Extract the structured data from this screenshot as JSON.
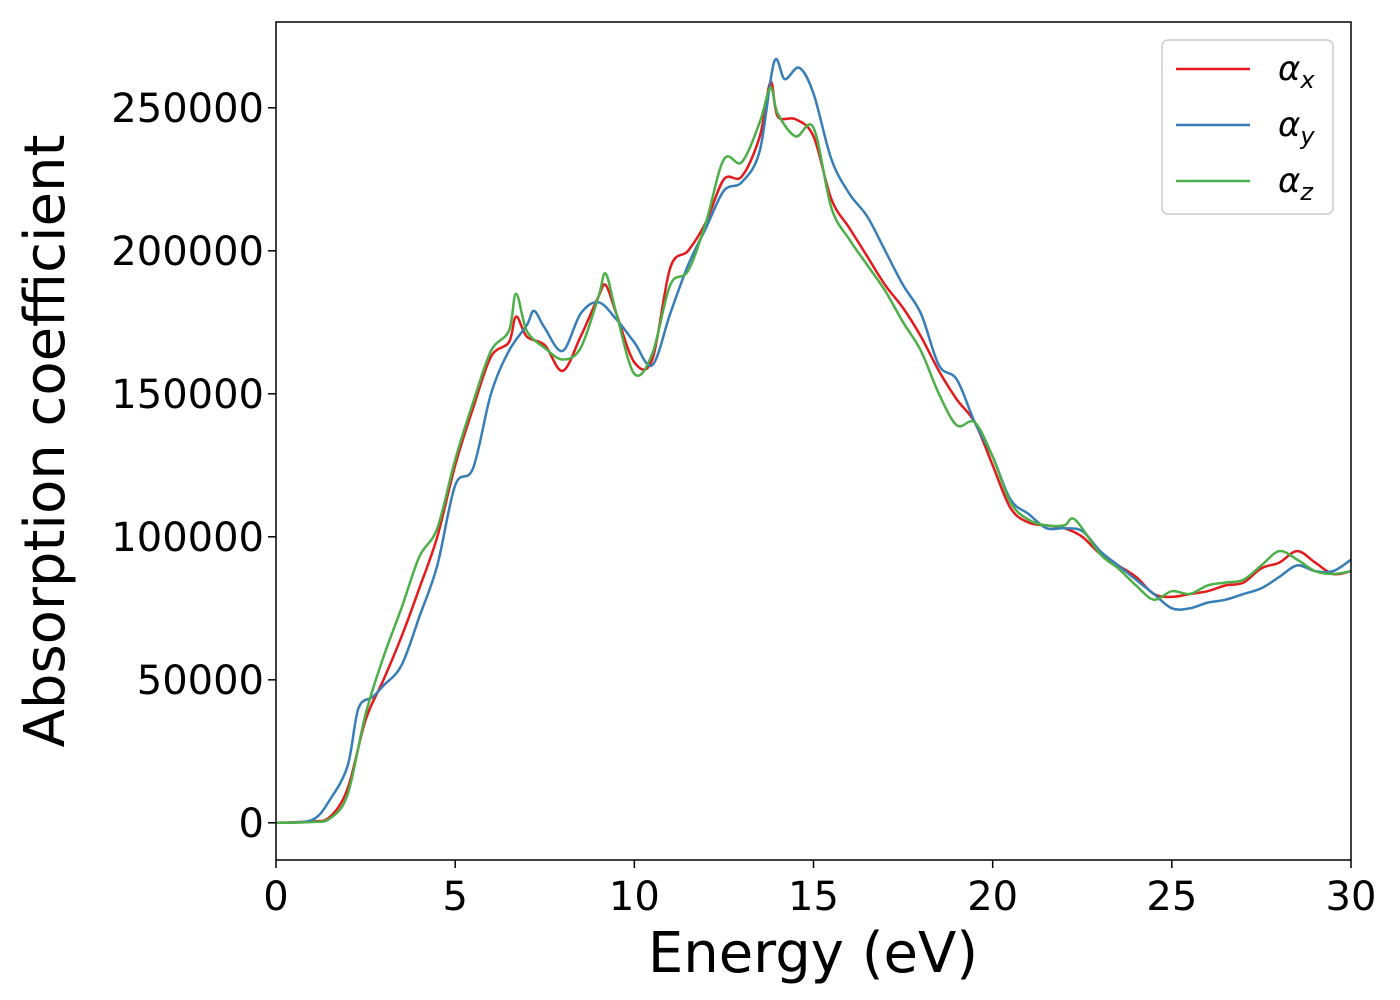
{
  "chart_data": {
    "type": "line",
    "title": "",
    "xlabel": "Energy (eV)",
    "ylabel": "Absorption coefficient",
    "xlim": [
      0,
      30
    ],
    "ylim": [
      -13000,
      280000
    ],
    "xticks": [
      0,
      5,
      10,
      15,
      20,
      25,
      30
    ],
    "yticks": [
      0,
      50000,
      100000,
      150000,
      200000,
      250000
    ],
    "xtick_labels": [
      "0",
      "5",
      "10",
      "15",
      "20",
      "25",
      "30"
    ],
    "ytick_labels": [
      "0",
      "50000",
      "100000",
      "150000",
      "200000",
      "250000"
    ],
    "grid": false,
    "legend_position": "top-right",
    "series": [
      {
        "name": "αx",
        "symbol": "α",
        "subscript": "x",
        "color": "#e41a1c",
        "x": [
          0,
          1,
          1.5,
          2,
          2.5,
          3,
          3.5,
          4,
          4.5,
          5,
          5.5,
          6,
          6.5,
          6.7,
          7,
          7.5,
          8,
          8.5,
          9,
          9.2,
          9.5,
          10,
          10.5,
          11,
          11.5,
          12,
          12.5,
          13,
          13.5,
          13.8,
          14,
          14.5,
          15,
          15.5,
          16,
          16.5,
          17,
          17.5,
          18,
          18.5,
          19,
          19.5,
          20,
          20.5,
          21,
          21.5,
          22,
          22.5,
          23,
          23.5,
          24,
          24.5,
          25,
          25.5,
          26,
          26.5,
          27,
          27.5,
          28,
          28.5,
          29,
          29.5,
          30
        ],
        "values": [
          0,
          500,
          2000,
          12000,
          36000,
          50000,
          65000,
          82000,
          100000,
          125000,
          145000,
          163000,
          168000,
          177000,
          170000,
          167000,
          158000,
          170000,
          184000,
          188000,
          178000,
          161000,
          162000,
          194000,
          200000,
          210000,
          225000,
          226000,
          240000,
          259000,
          247000,
          246000,
          240000,
          218000,
          208000,
          198000,
          188000,
          180000,
          170000,
          158000,
          148000,
          140000,
          125000,
          110000,
          105000,
          104000,
          103000,
          100000,
          94000,
          90000,
          86000,
          80000,
          79000,
          80000,
          81000,
          83000,
          84000,
          89000,
          91000,
          95000,
          91000,
          87000,
          88000
        ]
      },
      {
        "name": "αy",
        "symbol": "α",
        "subscript": "y",
        "color": "#377eb8",
        "x": [
          0,
          1,
          1.5,
          2,
          2.3,
          2.7,
          3,
          3.5,
          4,
          4.5,
          5,
          5.5,
          6,
          6.5,
          7,
          7.2,
          7.5,
          8,
          8.5,
          9,
          9.5,
          10,
          10.5,
          11,
          11.5,
          12,
          12.5,
          13,
          13.5,
          13.9,
          14.2,
          14.6,
          15,
          15.5,
          16,
          16.5,
          17,
          17.5,
          18,
          18.5,
          19,
          19.5,
          20,
          20.5,
          21,
          21.5,
          22,
          22.5,
          23,
          23.5,
          24,
          24.5,
          25,
          25.5,
          26,
          26.5,
          27,
          27.5,
          28,
          28.5,
          29,
          29.5,
          30
        ],
        "values": [
          0,
          1000,
          8000,
          20000,
          40000,
          44000,
          48000,
          55000,
          72000,
          90000,
          118000,
          124000,
          150000,
          165000,
          174000,
          179000,
          173000,
          165000,
          178000,
          182000,
          176000,
          168000,
          160000,
          178000,
          195000,
          208000,
          221000,
          224000,
          235000,
          266000,
          260000,
          264000,
          255000,
          232000,
          220000,
          212000,
          200000,
          188000,
          178000,
          160000,
          155000,
          140000,
          128000,
          113000,
          108000,
          103000,
          103000,
          102000,
          95000,
          90000,
          85000,
          80000,
          75000,
          75000,
          77000,
          78000,
          80000,
          82000,
          86000,
          90000,
          88000,
          88000,
          92000
        ]
      },
      {
        "name": "αz",
        "symbol": "α",
        "subscript": "z",
        "color": "#4daf4a",
        "x": [
          0,
          1,
          1.5,
          2,
          2.5,
          3,
          3.5,
          4,
          4.5,
          5,
          5.5,
          6,
          6.5,
          6.7,
          7,
          7.5,
          8,
          8.5,
          9,
          9.2,
          9.5,
          10,
          10.5,
          11,
          11.5,
          12,
          12.5,
          13,
          13.5,
          13.8,
          14,
          14.5,
          15,
          15.5,
          16,
          16.5,
          17,
          17.5,
          18,
          18.5,
          19,
          19.5,
          20,
          20.5,
          21,
          21.5,
          22,
          22.3,
          23,
          23.5,
          24,
          24.5,
          25,
          25.5,
          26,
          26.5,
          27,
          27.5,
          28,
          28.5,
          29,
          29.5,
          30
        ],
        "values": [
          0,
          300,
          1500,
          10000,
          38000,
          58000,
          75000,
          93000,
          103000,
          127000,
          147000,
          165000,
          172000,
          185000,
          172000,
          166000,
          162000,
          166000,
          184000,
          192000,
          178000,
          157000,
          164000,
          188000,
          193000,
          210000,
          232000,
          231000,
          245000,
          257000,
          248000,
          240000,
          243000,
          215000,
          204000,
          195000,
          186000,
          175000,
          165000,
          150000,
          139000,
          140000,
          128000,
          112000,
          106000,
          104000,
          104000,
          106000,
          94000,
          89000,
          83000,
          78000,
          81000,
          80000,
          83000,
          84000,
          85000,
          90000,
          95000,
          92000,
          88000,
          87000,
          88000
        ]
      }
    ]
  }
}
